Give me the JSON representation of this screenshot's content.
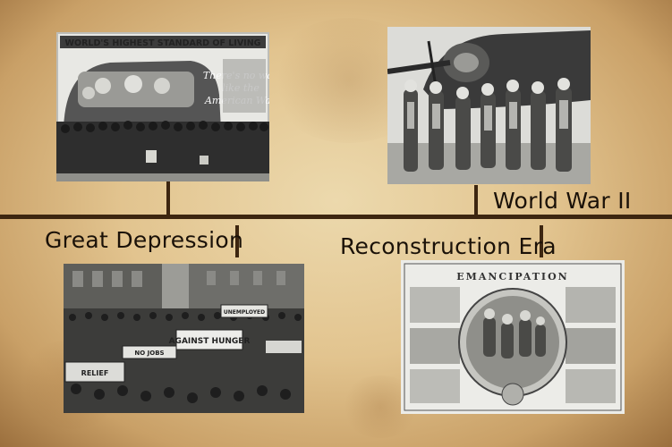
{
  "timeline": {
    "events": [
      {
        "label": "Great Depression"
      },
      {
        "label": "Reconstruction Era"
      },
      {
        "label": "World War II"
      }
    ]
  },
  "photos": {
    "billboard": {
      "headline": "WORLD'S HIGHEST STANDARD OF LIVING",
      "slogan_line1": "There's no way",
      "slogan_line2": "like the",
      "slogan_line3": "American Way"
    },
    "protest": {
      "banner_main": "AGAINST HUNGER",
      "banner_small": "UNEMPLOYED",
      "banner_left": "NO JOBS",
      "banner_relief": "RELIEF"
    },
    "emancipation": {
      "title": "EMANCIPATION"
    }
  }
}
